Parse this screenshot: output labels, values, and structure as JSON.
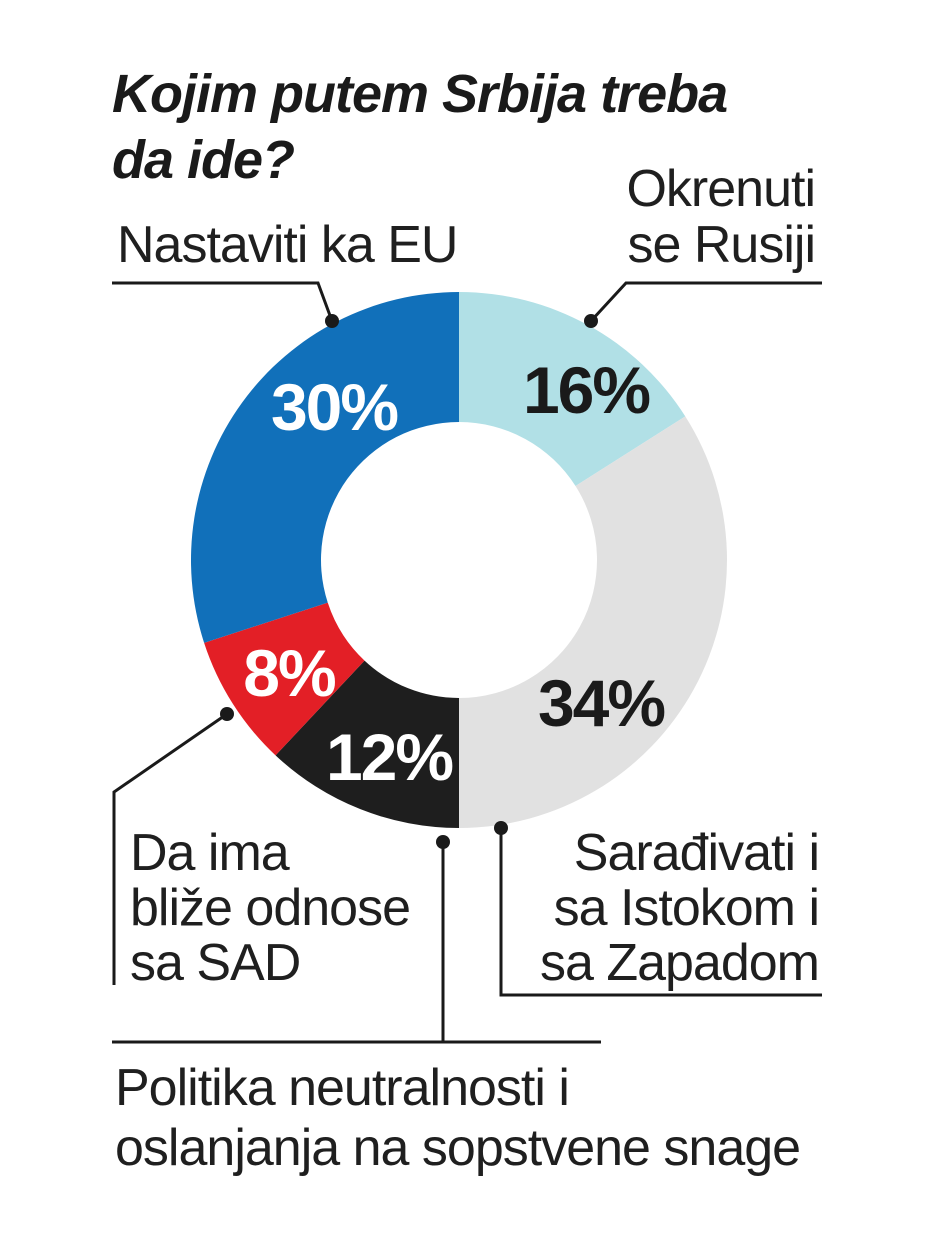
{
  "chart_data": {
    "type": "pie",
    "title_lines": [
      "Kojim putem Srbija treba",
      "da ide?"
    ],
    "slices": [
      {
        "key": "rusija",
        "label_lines": [
          "Okrenuti",
          "se Rusiji"
        ],
        "value": 16,
        "value_label": "16%",
        "color": "#b1e0e6",
        "text_color": "#1a1a1a"
      },
      {
        "key": "istok-zapad",
        "label_lines": [
          "Sarađivati i",
          "sa Istokom i",
          "sa Zapadom"
        ],
        "value": 34,
        "value_label": "34%",
        "color": "#e1e1e1",
        "text_color": "#1a1a1a"
      },
      {
        "key": "neutralnost",
        "label_lines": [
          "Politika neutralnosti i",
          "oslanjanja na sopstvene snage"
        ],
        "value": 12,
        "value_label": "12%",
        "color": "#1e1e1e",
        "text_color": "#ffffff"
      },
      {
        "key": "sad",
        "label_lines": [
          "Da ima",
          "bliže odnose",
          "sa SAD"
        ],
        "value": 8,
        "value_label": "8%",
        "color": "#e31f26",
        "text_color": "#ffffff"
      },
      {
        "key": "eu",
        "label_lines": [
          "Nastaviti ka EU"
        ],
        "value": 30,
        "value_label": "30%",
        "color": "#1170ba",
        "text_color": "#ffffff"
      }
    ]
  }
}
